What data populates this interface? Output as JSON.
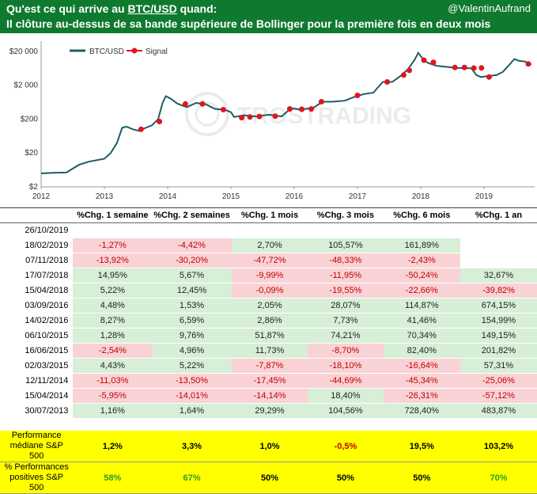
{
  "header": {
    "title_pre": "Qu'est ce qui arrive au ",
    "title_pair": "BTC/USD",
    "title_post": " quand:",
    "subtitle": "Il clôture au-dessus de sa bande supérieure de Bollinger pour la première fois en deux mois",
    "author": "@ValentinAufrand"
  },
  "watermark": "TROSTRADING",
  "colors": {
    "header_bg": "#0f7a2f",
    "line": "#1f5c63",
    "signal": "#e0161e",
    "positive_bg": "#d6efd6",
    "negative_bg": "#f9d2d6",
    "summary_bg": "#ffff00"
  },
  "chart_data": {
    "type": "line",
    "y_scale": "log",
    "ylim": [
      2,
      40000
    ],
    "xlim": [
      2012,
      2019.8
    ],
    "y_ticks": [
      {
        "value": 2,
        "label": "$2"
      },
      {
        "value": 20,
        "label": "$20"
      },
      {
        "value": 200,
        "label": "$200"
      },
      {
        "value": 2000,
        "label": "$2 000"
      },
      {
        "value": 20000,
        "label": "$20 000"
      }
    ],
    "x_ticks": [
      {
        "value": 2012,
        "label": "2012"
      },
      {
        "value": 2013,
        "label": "2013"
      },
      {
        "value": 2014,
        "label": "2014"
      },
      {
        "value": 2015,
        "label": "2015"
      },
      {
        "value": 2016,
        "label": "2016"
      },
      {
        "value": 2017,
        "label": "2017"
      },
      {
        "value": 2018,
        "label": "2018"
      },
      {
        "value": 2019,
        "label": "2019"
      }
    ],
    "legend": {
      "position": "top-left",
      "entries": [
        "BTC/USD",
        "Signal"
      ]
    },
    "series": [
      {
        "name": "BTC/USD",
        "x": [
          2012.0,
          2012.2,
          2012.4,
          2012.6,
          2012.75,
          2012.9,
          2013.0,
          2013.1,
          2013.2,
          2013.28,
          2013.35,
          2013.45,
          2013.55,
          2013.65,
          2013.75,
          2013.85,
          2013.92,
          2013.97,
          2014.05,
          2014.15,
          2014.3,
          2014.45,
          2014.6,
          2014.75,
          2014.9,
          2015.0,
          2015.05,
          2015.2,
          2015.4,
          2015.6,
          2015.8,
          2015.95,
          2016.1,
          2016.3,
          2016.45,
          2016.6,
          2016.8,
          2016.95,
          2017.1,
          2017.25,
          2017.4,
          2017.55,
          2017.7,
          2017.8,
          2017.9,
          2017.96,
          2018.05,
          2018.12,
          2018.25,
          2018.4,
          2018.55,
          2018.7,
          2018.8,
          2018.88,
          2018.95,
          2019.05,
          2019.2,
          2019.3,
          2019.4,
          2019.48,
          2019.55,
          2019.65,
          2019.75
        ],
        "y": [
          5,
          5.2,
          5.3,
          9,
          11,
          12.5,
          13.5,
          20,
          40,
          110,
          120,
          100,
          90,
          110,
          130,
          200,
          600,
          950,
          800,
          580,
          450,
          600,
          550,
          400,
          380,
          320,
          230,
          260,
          240,
          270,
          240,
          420,
          380,
          430,
          650,
          650,
          700,
          900,
          1100,
          1200,
          2500,
          2500,
          4000,
          6000,
          11000,
          18000,
          11000,
          9000,
          7500,
          7000,
          6500,
          6400,
          6300,
          4000,
          3500,
          3700,
          4000,
          5000,
          8000,
          12000,
          10500,
          10000,
          8200
        ]
      },
      {
        "name": "Signal",
        "x": [
          2013.58,
          2013.87,
          2014.28,
          2014.55,
          2014.88,
          2015.17,
          2015.3,
          2015.45,
          2015.7,
          2015.93,
          2016.12,
          2016.27,
          2016.43,
          2017.0,
          2017.47,
          2017.73,
          2017.82,
          2018.05,
          2018.2,
          2018.54,
          2018.69,
          2018.84,
          2018.96,
          2019.08,
          2019.7
        ],
        "y": [
          100,
          170,
          560,
          560,
          380,
          220,
          230,
          240,
          245,
          400,
          390,
          400,
          650,
          1000,
          2500,
          4000,
          5500,
          11000,
          9500,
          6700,
          6700,
          6400,
          6500,
          3500,
          8500
        ]
      }
    ]
  },
  "table": {
    "columns": [
      "%Chg. 1 semaine",
      "%Chg. 2 semaines",
      "%Chg. 1 mois",
      "%Chg. 3 mois",
      "%Chg. 6 mois",
      "%Chg. 1 an"
    ],
    "rows": [
      {
        "date": "26/10/2019",
        "cells": [
          "",
          "",
          "",
          "",
          "",
          ""
        ]
      },
      {
        "date": "18/02/2019",
        "cells": [
          "-1,27%",
          "-4,42%",
          "2,70%",
          "105,57%",
          "161,89%",
          ""
        ]
      },
      {
        "date": "07/11/2018",
        "cells": [
          "-13,92%",
          "-30,20%",
          "-47,72%",
          "-48,33%",
          "-2,43%",
          ""
        ]
      },
      {
        "date": "17/07/2018",
        "cells": [
          "14,95%",
          "5,67%",
          "-9,99%",
          "-11,95%",
          "-50,24%",
          "32,67%"
        ]
      },
      {
        "date": "15/04/2018",
        "cells": [
          "5,22%",
          "12,45%",
          "-0,09%",
          "-19,55%",
          "-22,66%",
          "-39,82%"
        ]
      },
      {
        "date": "03/09/2016",
        "cells": [
          "4,48%",
          "1,53%",
          "2,05%",
          "28,07%",
          "114,87%",
          "674,15%"
        ]
      },
      {
        "date": "14/02/2016",
        "cells": [
          "8,27%",
          "6,59%",
          "2,86%",
          "7,73%",
          "41,46%",
          "154,99%"
        ]
      },
      {
        "date": "06/10/2015",
        "cells": [
          "1,28%",
          "9,76%",
          "51,87%",
          "74,21%",
          "70,34%",
          "149,15%"
        ]
      },
      {
        "date": "16/06/2015",
        "cells": [
          "-2,54%",
          "4,96%",
          "11,73%",
          "-8,70%",
          "82,40%",
          "201,82%"
        ]
      },
      {
        "date": "02/03/2015",
        "cells": [
          "4,43%",
          "5,22%",
          "-7,87%",
          "-18,10%",
          "-16,64%",
          "57,31%"
        ]
      },
      {
        "date": "12/11/2014",
        "cells": [
          "-11,03%",
          "-13,50%",
          "-17,45%",
          "-44,69%",
          "-45,34%",
          "-25,06%"
        ]
      },
      {
        "date": "15/04/2014",
        "cells": [
          "-5,95%",
          "-14,01%",
          "-14,14%",
          "18,40%",
          "-26,31%",
          "-57,12%"
        ]
      },
      {
        "date": "30/07/2013",
        "cells": [
          "1,16%",
          "1,64%",
          "29,29%",
          "104,56%",
          "728,40%",
          "483,87%"
        ]
      }
    ],
    "summary": [
      {
        "label": "Performance médiane S&P 500",
        "values": [
          "1,2%",
          "3,3%",
          "1,0%",
          "-0,5%",
          "19,5%",
          "103,2%"
        ],
        "tones": [
          "",
          "",
          "",
          "r",
          "",
          ""
        ]
      },
      {
        "label": "% Performances positives S&P 500",
        "values": [
          "58%",
          "67%",
          "50%",
          "50%",
          "50%",
          "70%"
        ],
        "tones": [
          "g",
          "g",
          "",
          "",
          "",
          "g"
        ]
      }
    ]
  }
}
